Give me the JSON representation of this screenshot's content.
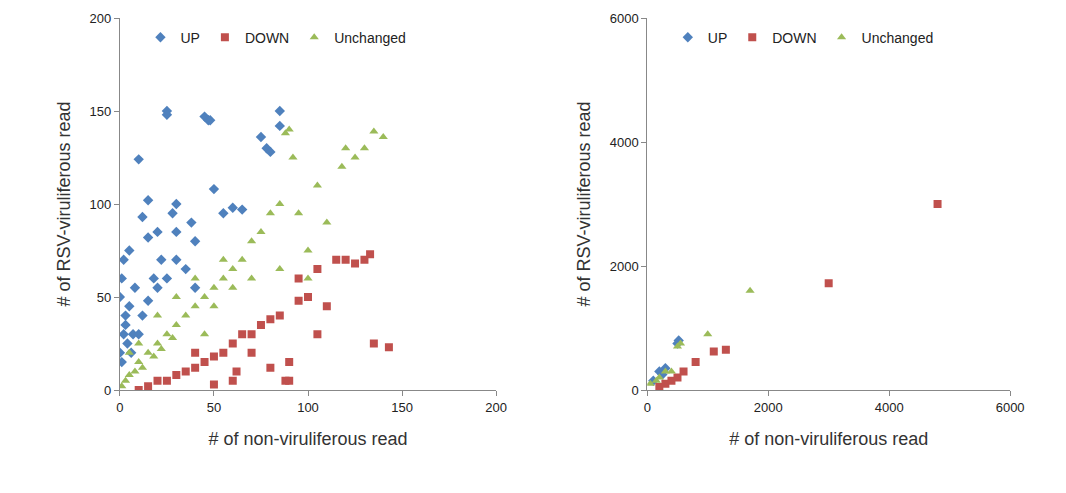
{
  "chart_data": [
    {
      "type": "scatter",
      "x_label": "# of non-viruliferous read",
      "y_label": "# of RSV-viruliferous read",
      "xlim": [
        0,
        200
      ],
      "ylim": [
        0,
        200
      ],
      "xticks": [
        0,
        50,
        100,
        150,
        200
      ],
      "yticks": [
        0,
        50,
        100,
        150,
        200
      ],
      "legend": "top",
      "grid": false,
      "series": [
        {
          "name": "UP",
          "color": "#4F81BD",
          "marker": "diamond",
          "x": [
            0,
            0,
            1,
            2,
            3,
            5,
            8,
            10,
            10,
            12,
            15,
            15,
            18,
            20,
            22,
            25,
            25,
            28,
            30,
            30,
            35,
            38,
            40,
            45,
            47,
            48,
            50,
            55,
            60,
            65,
            75,
            78,
            80,
            85,
            85,
            3,
            5,
            7,
            2,
            1,
            4,
            6,
            12,
            15,
            20,
            25,
            30,
            40
          ],
          "values": [
            20,
            50,
            60,
            70,
            40,
            75,
            55,
            124,
            30,
            93,
            82,
            102,
            60,
            85,
            70,
            150,
            148,
            95,
            100,
            85,
            65,
            90,
            55,
            147,
            145,
            145,
            108,
            95,
            98,
            97,
            136,
            130,
            128,
            150,
            142,
            35,
            45,
            30,
            30,
            15,
            25,
            20,
            40,
            48,
            55,
            60,
            70,
            80
          ]
        },
        {
          "name": "DOWN",
          "color": "#C0504D",
          "marker": "square",
          "x": [
            10,
            15,
            20,
            25,
            30,
            35,
            40,
            45,
            50,
            55,
            60,
            62,
            65,
            70,
            75,
            80,
            85,
            88,
            90,
            95,
            100,
            105,
            110,
            115,
            120,
            130,
            133,
            135,
            143,
            80,
            90,
            95,
            60,
            70,
            50,
            40,
            105,
            125
          ],
          "values": [
            0,
            2,
            5,
            5,
            8,
            10,
            12,
            15,
            18,
            20,
            25,
            10,
            30,
            30,
            35,
            38,
            40,
            5,
            15,
            48,
            50,
            65,
            45,
            70,
            70,
            70,
            73,
            25,
            23,
            12,
            5,
            60,
            5,
            20,
            3,
            20,
            30,
            68
          ]
        },
        {
          "name": "Unchanged",
          "color": "#9BBB59",
          "marker": "triangle-up",
          "x": [
            1,
            3,
            5,
            8,
            10,
            12,
            15,
            18,
            20,
            22,
            25,
            28,
            30,
            35,
            40,
            45,
            50,
            55,
            60,
            65,
            70,
            75,
            80,
            85,
            88,
            90,
            92,
            95,
            100,
            105,
            110,
            118,
            120,
            125,
            130,
            135,
            140,
            45,
            50,
            60,
            5,
            10,
            20,
            30,
            40,
            55,
            70,
            85,
            100
          ],
          "values": [
            2,
            5,
            8,
            10,
            15,
            12,
            20,
            18,
            25,
            22,
            30,
            28,
            35,
            40,
            45,
            50,
            55,
            60,
            65,
            70,
            80,
            85,
            95,
            100,
            138,
            140,
            125,
            95,
            75,
            110,
            90,
            120,
            130,
            125,
            130,
            139,
            136,
            30,
            45,
            55,
            20,
            25,
            40,
            50,
            60,
            70,
            60,
            65,
            60
          ]
        }
      ]
    },
    {
      "type": "scatter",
      "x_label": "# of non-viruliferous read",
      "y_label": "# of RSV-viruliferous read",
      "xlim": [
        0,
        6000
      ],
      "ylim": [
        0,
        6000
      ],
      "xticks": [
        0,
        2000,
        4000,
        6000
      ],
      "yticks": [
        0,
        2000,
        4000,
        6000
      ],
      "legend": "top",
      "grid": false,
      "series": [
        {
          "name": "UP",
          "color": "#4F81BD",
          "marker": "diamond",
          "x": [
            100,
            200,
            250,
            300,
            500,
            520
          ],
          "values": [
            150,
            300,
            250,
            350,
            750,
            800
          ]
        },
        {
          "name": "DOWN",
          "color": "#C0504D",
          "marker": "square",
          "x": [
            200,
            300,
            400,
            500,
            600,
            800,
            1100,
            1300,
            3000,
            4800
          ],
          "values": [
            50,
            100,
            150,
            200,
            300,
            450,
            620,
            650,
            1720,
            3000
          ]
        },
        {
          "name": "Unchanged",
          "color": "#9BBB59",
          "marker": "triangle-up",
          "x": [
            50,
            150,
            200,
            300,
            400,
            500,
            550,
            1000,
            1700
          ],
          "values": [
            100,
            150,
            200,
            300,
            300,
            700,
            750,
            900,
            1600
          ]
        }
      ]
    }
  ]
}
